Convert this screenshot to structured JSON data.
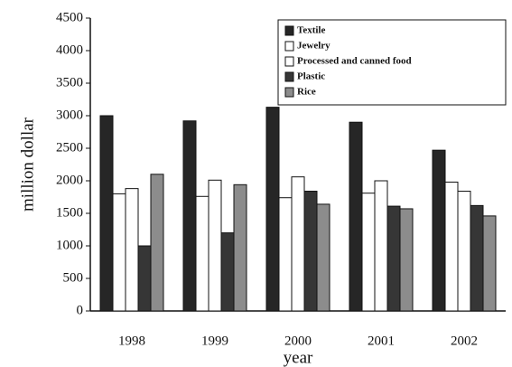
{
  "chart_data": {
    "type": "bar",
    "y_label": "million dollar",
    "x_label": "year",
    "categories": [
      "1998",
      "1999",
      "2000",
      "2001",
      "2002"
    ],
    "series": [
      {
        "name": "Textile",
        "color": "#262626",
        "values": [
          3000,
          2920,
          3130,
          2900,
          2470
        ]
      },
      {
        "name": "Jewelry",
        "color": "#ffffff",
        "values": [
          1800,
          1760,
          1740,
          1810,
          1980
        ]
      },
      {
        "name": "Processed and canned food",
        "color": "#ffffff",
        "values": [
          1880,
          2010,
          2060,
          2000,
          1840
        ]
      },
      {
        "name": "Plastic",
        "color": "#363636",
        "values": [
          1000,
          1200,
          1840,
          1610,
          1620
        ]
      },
      {
        "name": "Rice",
        "color": "#8c8c8c",
        "values": [
          2100,
          1940,
          1640,
          1570,
          1460
        ]
      }
    ],
    "ylim": [
      0,
      4500
    ],
    "yticks": [
      0,
      500,
      1000,
      1500,
      2000,
      2500,
      3000,
      3500,
      4000,
      4500
    ],
    "legend": "upper right"
  }
}
